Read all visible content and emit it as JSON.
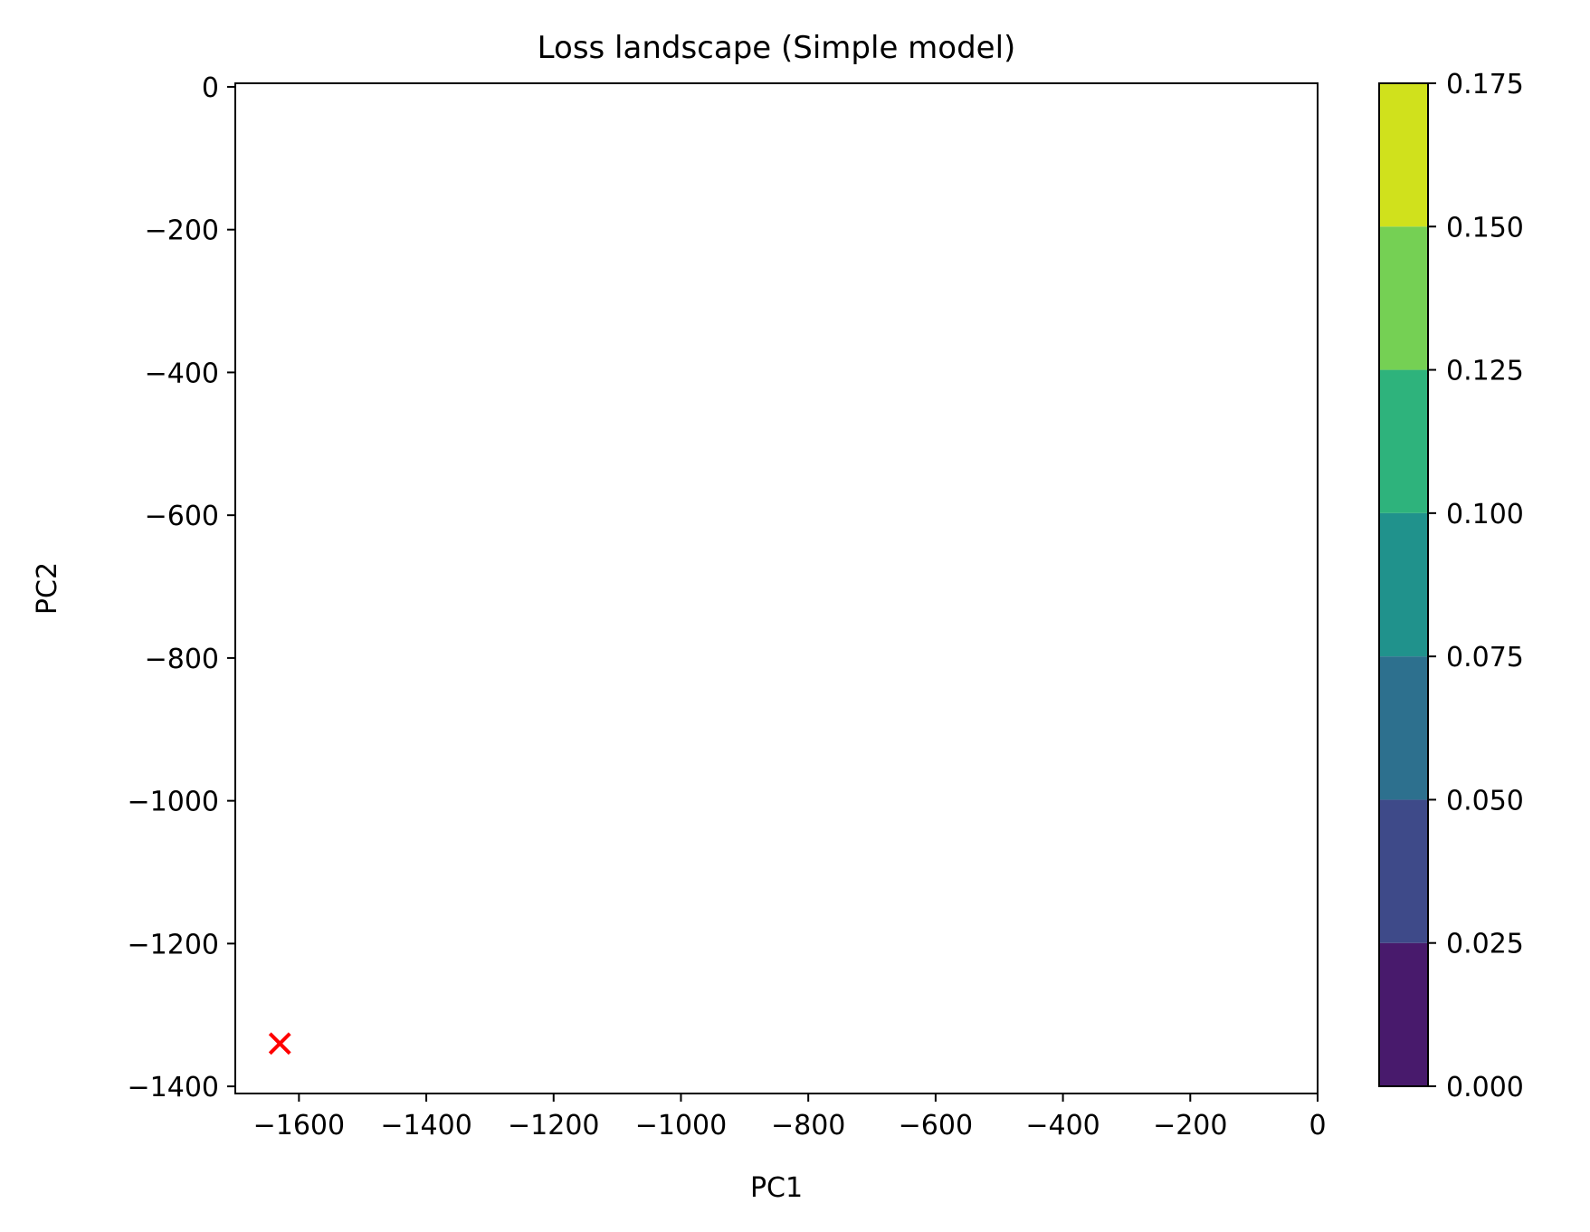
{
  "chart_data": {
    "type": "contour",
    "title": "Loss landscape (Simple model)",
    "xlabel": "PC1",
    "ylabel": "PC2",
    "xlim": [
      -1700,
      0
    ],
    "ylim": [
      -1410,
      5
    ],
    "xticks": [
      -1600,
      -1400,
      -1200,
      -1000,
      -800,
      -600,
      -400,
      -200,
      0
    ],
    "xtick_labels": [
      "−1600",
      "−1400",
      "−1200",
      "−1000",
      "−800",
      "−600",
      "−400",
      "−200",
      "0"
    ],
    "yticks": [
      0,
      -200,
      -400,
      -600,
      -800,
      -1000,
      -1200,
      -1400
    ],
    "ytick_labels": [
      "0",
      "−200",
      "−400",
      "−600",
      "−800",
      "−1000",
      "−1200",
      "−1400"
    ],
    "grid": false,
    "points": [
      {
        "x": -1630,
        "y": -1340,
        "marker": "x",
        "color": "#ff0000"
      }
    ],
    "colorbar": {
      "levels": [
        0.0,
        0.025,
        0.05,
        0.075,
        0.1,
        0.125,
        0.15,
        0.175
      ],
      "tick_labels": [
        "0.000",
        "0.025",
        "0.050",
        "0.075",
        "0.100",
        "0.125",
        "0.150",
        "0.175"
      ],
      "colors": [
        "#481a6c",
        "#3e4a89",
        "#2d708e",
        "#20928c",
        "#2eb37c",
        "#75d054",
        "#d0e11c"
      ]
    }
  }
}
